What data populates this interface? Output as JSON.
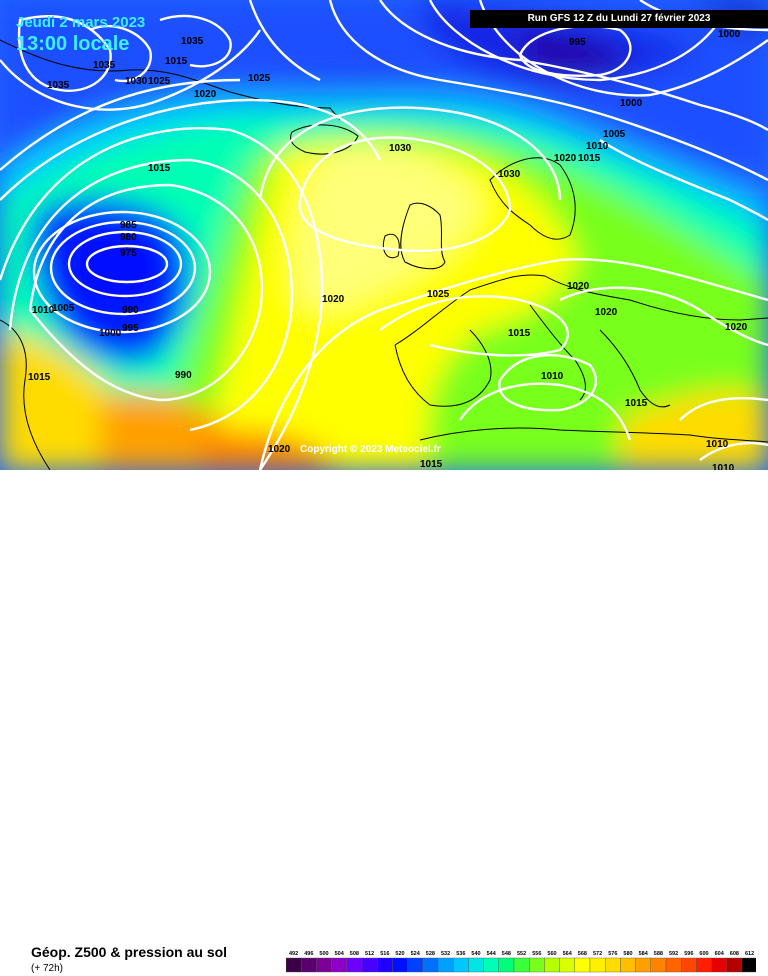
{
  "header": {
    "date": "Jeudi 2 mars 2023",
    "time": "13:00 locale",
    "run": "Run GFS 12 Z du Lundi 27 février 2023"
  },
  "map": {
    "copyright": "Copyright © 2023 Meteociel.fr",
    "isobar_labels": [
      {
        "text": "1035"
      },
      {
        "text": "1035"
      },
      {
        "text": "1015"
      },
      {
        "text": "1030"
      },
      {
        "text": "1025"
      },
      {
        "text": "1035"
      },
      {
        "text": "1025"
      },
      {
        "text": "1020"
      },
      {
        "text": "995"
      },
      {
        "text": "1000"
      },
      {
        "text": "1000"
      },
      {
        "text": "1005"
      },
      {
        "text": "1010"
      },
      {
        "text": "1020"
      },
      {
        "text": "1015"
      },
      {
        "text": "1015"
      },
      {
        "text": "1030"
      },
      {
        "text": "1030"
      },
      {
        "text": "985"
      },
      {
        "text": "980"
      },
      {
        "text": "975"
      },
      {
        "text": "1020"
      },
      {
        "text": "1025"
      },
      {
        "text": "1020"
      },
      {
        "text": "1020"
      },
      {
        "text": "1010"
      },
      {
        "text": "1005"
      },
      {
        "text": "990"
      },
      {
        "text": "995"
      },
      {
        "text": "1000"
      },
      {
        "text": "1015"
      },
      {
        "text": "1020"
      },
      {
        "text": "1010"
      },
      {
        "text": "990"
      },
      {
        "text": "1015"
      },
      {
        "text": "1015"
      },
      {
        "text": "1020"
      },
      {
        "text": "1015"
      },
      {
        "text": "1010"
      },
      {
        "text": "1010"
      }
    ]
  },
  "legend": {
    "title": "Géop. Z500 & pression au sol",
    "subtitle": "(+ 72h)",
    "scale_values": [
      "492",
      "496",
      "500",
      "504",
      "508",
      "512",
      "516",
      "520",
      "524",
      "528",
      "532",
      "536",
      "540",
      "544",
      "548",
      "552",
      "556",
      "560",
      "564",
      "568",
      "572",
      "576",
      "580",
      "584",
      "588",
      "592",
      "596",
      "600",
      "604",
      "608",
      "612"
    ],
    "scale_colors": [
      "#3c0046",
      "#5a006e",
      "#7a0096",
      "#8c00c8",
      "#6e00ff",
      "#4800ff",
      "#2200ff",
      "#0010ff",
      "#0040ff",
      "#0070ff",
      "#00a0ff",
      "#00c8ff",
      "#00e6e6",
      "#00ffb4",
      "#00ff78",
      "#3cff3c",
      "#78ff1e",
      "#b4ff00",
      "#dcff00",
      "#ffff00",
      "#fff000",
      "#ffdc00",
      "#ffbe00",
      "#ffa000",
      "#ff8200",
      "#ff6400",
      "#ff4600",
      "#ff1e00",
      "#e60000",
      "#b40000",
      "#000000"
    ]
  }
}
